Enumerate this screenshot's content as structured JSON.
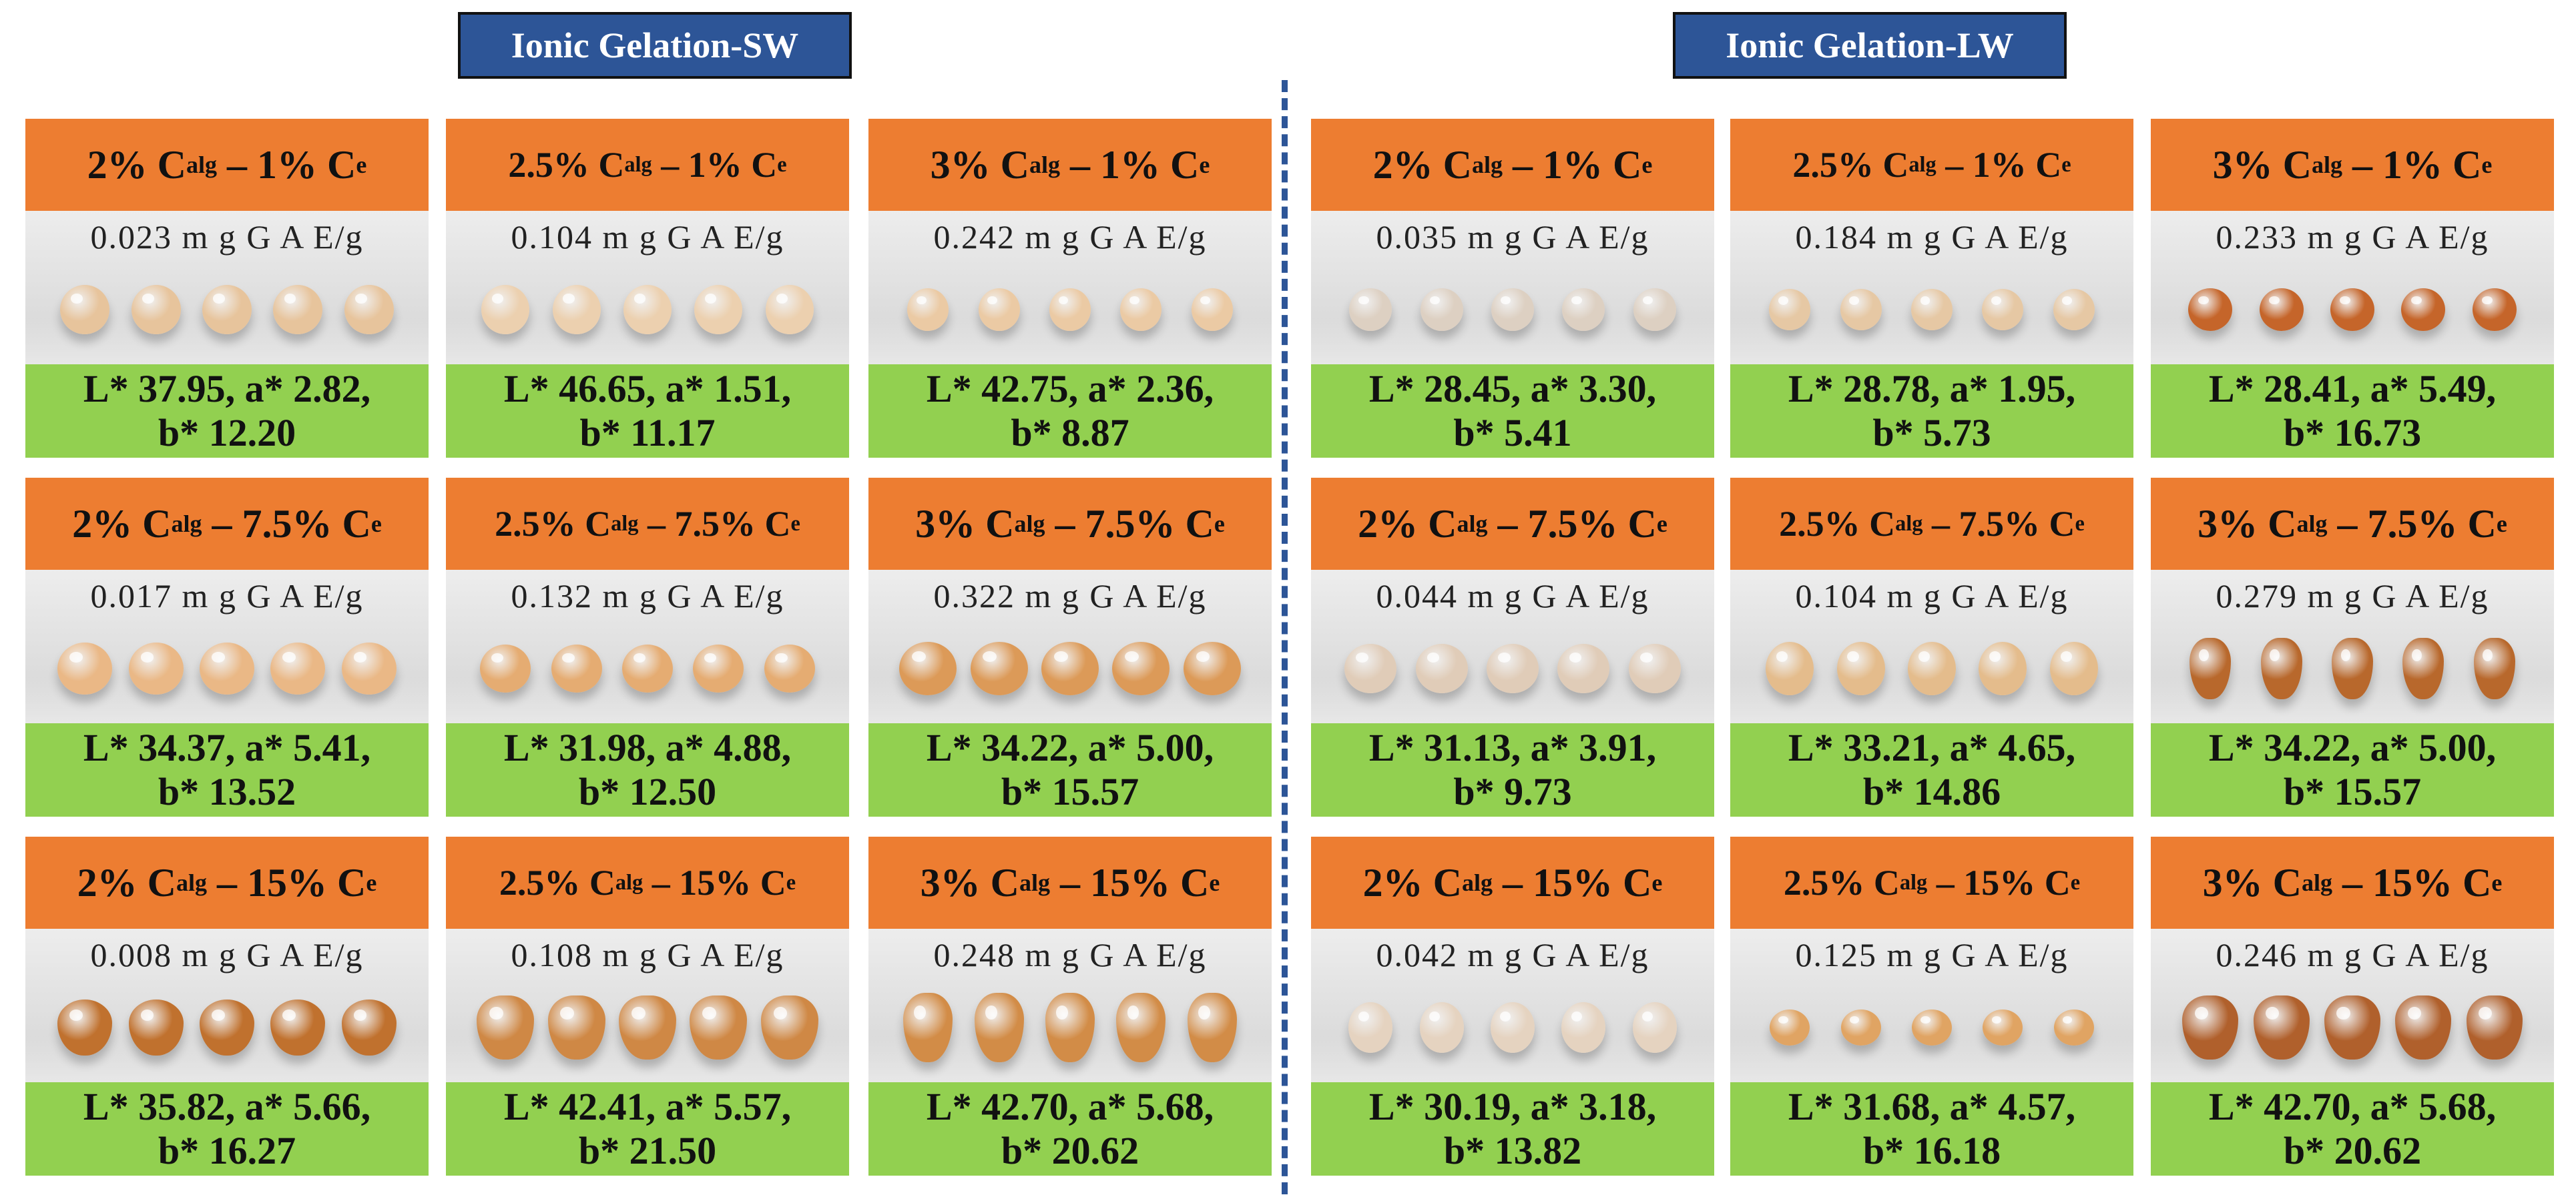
{
  "titles": {
    "sw": "Ionic Gelation-SW",
    "lw": "Ionic Gelation-LW"
  },
  "colors": {
    "title_bg": "#2d5597",
    "header_bg": "#ed7d31",
    "footer_bg": "#92d050",
    "divider": "#2d5597"
  },
  "sw": [
    [
      {
        "alg": "2%",
        "ce": "1%",
        "value": "0.023 m g G A E/g",
        "line1": "L* 37.95, a* 2.82,",
        "line2": "b* 12.20",
        "bead": "#e7c49c"
      },
      {
        "alg": "2.5%",
        "ce": "1%",
        "value": "0.104 m g G A E/g",
        "line1": "L* 46.65, a* 1.51,",
        "line2": "b* 11.17",
        "bead": "#ecd0af"
      },
      {
        "alg": "3%",
        "ce": "1%",
        "value": "0.242 m g G A E/g",
        "line1": "L* 42.75, a* 2.36,",
        "line2": "b* 8.87",
        "bead": "#ebcaa4"
      }
    ],
    [
      {
        "alg": "2%",
        "ce": "7.5%",
        "value": "0.017 m g G A E/g",
        "line1": "L* 34.37, a* 5.41,",
        "line2": "b* 13.52",
        "bead": "#eab886"
      },
      {
        "alg": "2.5%",
        "ce": "7.5%",
        "value": "0.132 m g G A E/g",
        "line1": "L* 31.98, a* 4.88,",
        "line2": "b* 12.50",
        "bead": "#e5ac72"
      },
      {
        "alg": "3%",
        "ce": "7.5%",
        "value": "0.322 m g G A E/g",
        "line1": "L* 34.22, a* 5.00,",
        "line2": "b* 15.57",
        "bead": "#dc9a58"
      }
    ],
    [
      {
        "alg": "2%",
        "ce": "15%",
        "value": "0.008 m g G A E/g",
        "line1": "L* 35.82, a* 5.66,",
        "line2": "b* 16.27",
        "bead": "#c0712e"
      },
      {
        "alg": "2.5%",
        "ce": "15%",
        "value": "0.108 m g G A E/g",
        "line1": "L* 42.41, a* 5.57,",
        "line2": "b* 21.50",
        "bead": "#cf8845"
      },
      {
        "alg": "3%",
        "ce": "15%",
        "value": "0.248 m g G A E/g",
        "line1": "L* 42.70, a* 5.68,",
        "line2": "b* 20.62",
        "bead": "#d28c47"
      }
    ]
  ],
  "lw": [
    [
      {
        "alg": "2%",
        "ce": "1%",
        "value": "0.035 m g G A E/g",
        "line1": "L* 28.45, a* 3.30,",
        "line2": "b* 5.41",
        "bead": "#ddd0c2"
      },
      {
        "alg": "2.5%",
        "ce": "1%",
        "value": "0.184 m g G A E/g",
        "line1": "L* 28.78, a* 1.95,",
        "line2": "b* 5.73",
        "bead": "#e6c8a4"
      },
      {
        "alg": "3%",
        "ce": "1%",
        "value": "0.233 m g G A E/g",
        "line1": "L* 28.41, a* 5.49,",
        "line2": "b* 16.73",
        "bead": "#c5652a"
      }
    ],
    [
      {
        "alg": "2%",
        "ce": "7.5%",
        "value": "0.044 m g G A E/g",
        "line1": "L* 31.13, a* 3.91,",
        "line2": "b* 9.73",
        "bead": "#e0ccb8"
      },
      {
        "alg": "2.5%",
        "ce": "7.5%",
        "value": "0.104 m g G A E/g",
        "line1": "L* 33.21, a* 4.65,",
        "line2": "b* 14.86",
        "bead": "#e4bc8c"
      },
      {
        "alg": "3%",
        "ce": "7.5%",
        "value": "0.279 m g G A E/g",
        "line1": "L* 34.22, a* 5.00,",
        "line2": "b* 15.57",
        "bead": "#b8682c"
      }
    ],
    [
      {
        "alg": "2%",
        "ce": "15%",
        "value": "0.042 m g G A E/g",
        "line1": "L* 30.19, a* 3.18,",
        "line2": "b* 13.82",
        "bead": "#e5d3c0"
      },
      {
        "alg": "2.5%",
        "ce": "15%",
        "value": "0.125 m g G A E/g",
        "line1": "L* 31.68, a* 4.57,",
        "line2": "b* 16.18",
        "bead": "#e0a463"
      },
      {
        "alg": "3%",
        "ce": "15%",
        "value": "0.246 m g G A E/g",
        "line1": "L* 42.70, a* 5.68,",
        "line2": "b* 20.62",
        "bead": "#b0602c"
      }
    ]
  ]
}
